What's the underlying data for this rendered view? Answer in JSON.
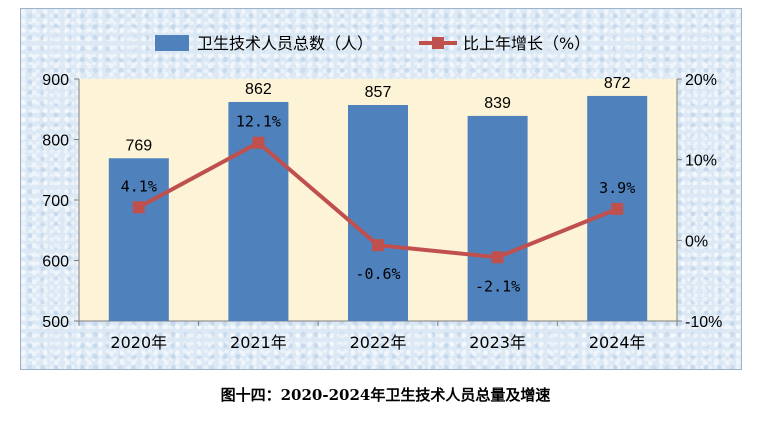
{
  "caption": "图十四：2020-2024年卫生技术人员总量及增速",
  "colors": {
    "bar": "#4f81bd",
    "line": "#c0504d",
    "plot_bg": "#fdf3d6"
  },
  "chart_data": {
    "type": "bar",
    "categories": [
      "2020年",
      "2021年",
      "2022年",
      "2023年",
      "2024年"
    ],
    "series": [
      {
        "name": "卫生技术人员总数（人）",
        "type": "bar",
        "axis": "left",
        "values": [
          769,
          862,
          857,
          839,
          872
        ],
        "labels": [
          "769",
          "862",
          "857",
          "839",
          "872"
        ]
      },
      {
        "name": "比上年增长（%）",
        "type": "line",
        "axis": "right",
        "values": [
          4.1,
          12.1,
          -0.6,
          -2.1,
          3.9
        ],
        "labels": [
          "4.1%",
          "12.1%",
          "-0.6%",
          "-2.1%",
          "3.9%"
        ]
      }
    ],
    "y_left": {
      "ylim": [
        500,
        900
      ],
      "ticks": [
        500,
        600,
        700,
        800,
        900
      ],
      "tick_labels": [
        "500",
        "600",
        "700",
        "800",
        "900"
      ]
    },
    "y_right": {
      "ylim": [
        -10,
        20
      ],
      "ticks": [
        -10,
        0,
        10,
        20
      ],
      "tick_labels": [
        "-10%",
        "0%",
        "10%",
        "20%"
      ]
    },
    "legend": "top",
    "grid": false
  }
}
